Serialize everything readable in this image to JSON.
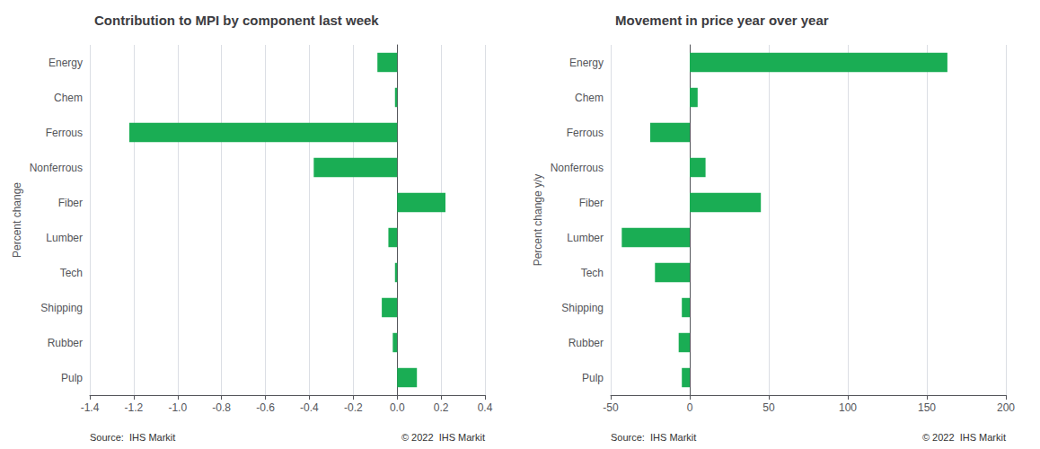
{
  "chart_data": [
    {
      "type": "bar",
      "orientation": "horizontal",
      "title": "Contribution to MPI by component last week",
      "ylabel": "Percent change",
      "categories": [
        "Energy",
        "Chem",
        "Ferrous",
        "Nonferrous",
        "Fiber",
        "Lumber",
        "Tech",
        "Shipping",
        "Rubber",
        "Pulp"
      ],
      "values": [
        -0.09,
        -0.01,
        -1.22,
        -0.38,
        0.22,
        -0.04,
        -0.01,
        -0.07,
        -0.02,
        0.09
      ],
      "color": "#1aad54",
      "xlim": [
        -1.4,
        0.4
      ],
      "xticks": [
        -1.4,
        -1.2,
        {
          "value": -1.0,
          "label": "-1.0"
        },
        -0.8,
        -0.6,
        -0.4,
        -0.2,
        {
          "value": 0.0,
          "label": "0.0"
        },
        0.2,
        0.4
      ],
      "grid": true,
      "annotations": [
        "Source:  IHS Markit",
        "© 2022  IHS Markit"
      ]
    },
    {
      "type": "bar",
      "orientation": "horizontal",
      "title": "Movement in price year over year",
      "ylabel": "Percent change y/y",
      "categories": [
        "Energy",
        "Chem",
        "Ferrous",
        "Nonferrous",
        "Fiber",
        "Lumber",
        "Tech",
        "Shipping",
        "Rubber",
        "Pulp"
      ],
      "values": [
        163,
        5,
        -25,
        10,
        45,
        -43,
        -22,
        -5,
        -7,
        -5
      ],
      "color": "#1aad54",
      "xlim": [
        -50,
        200
      ],
      "xticks": [
        -50,
        0,
        50,
        100,
        150,
        200
      ],
      "grid": true,
      "annotations": [
        "Source:  IHS Markit",
        "© 2022  IHS Markit"
      ]
    }
  ]
}
